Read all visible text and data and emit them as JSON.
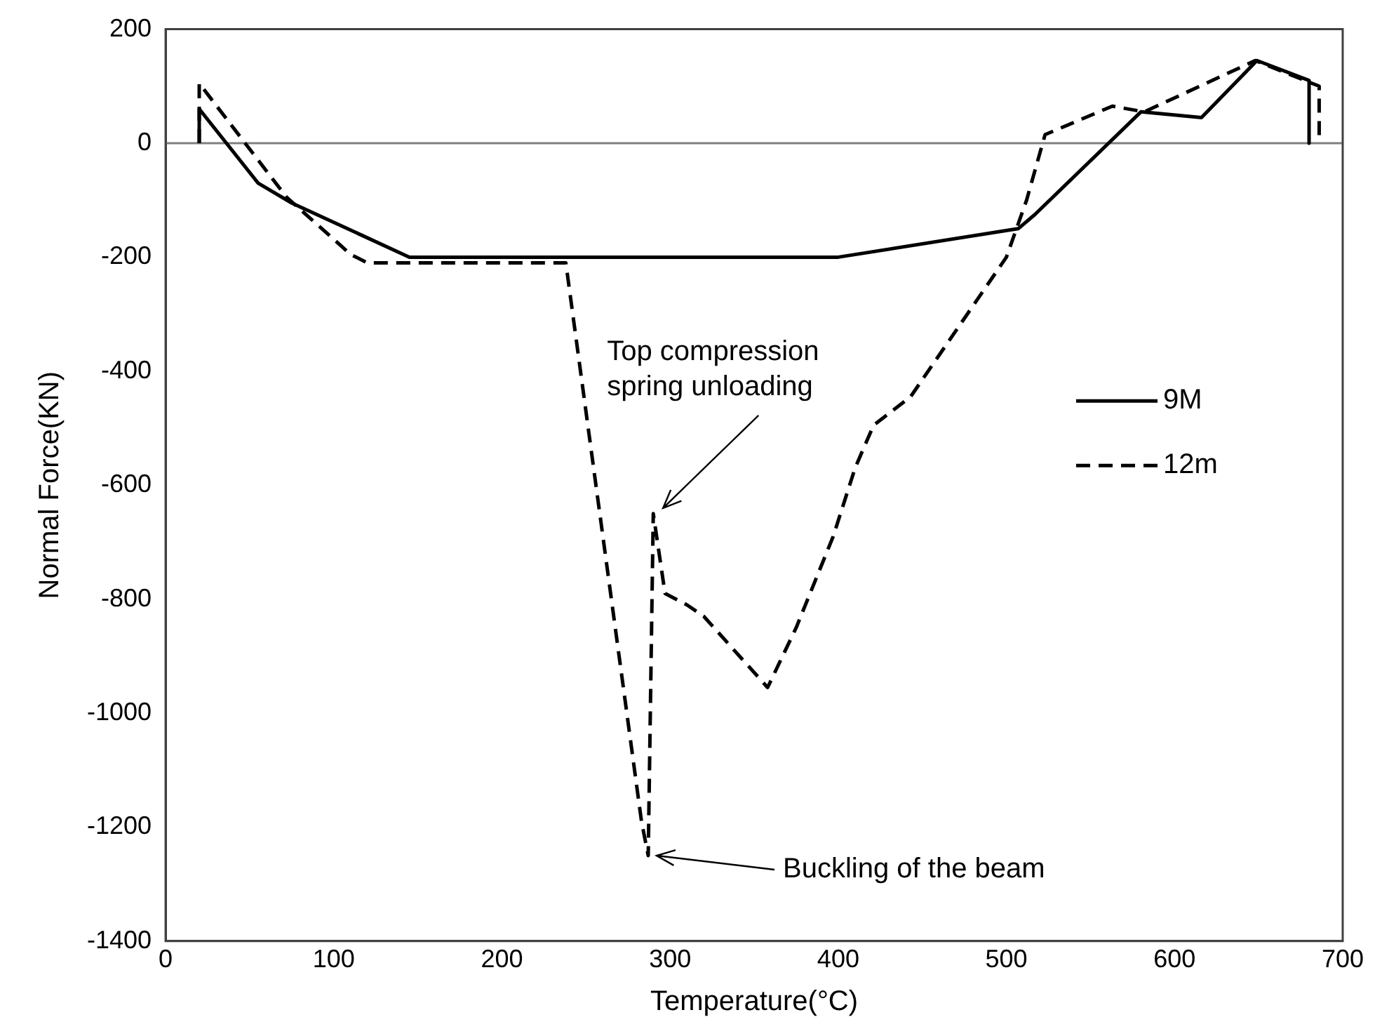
{
  "chart_data": {
    "type": "line",
    "xlabel": "Temperature(°C)",
    "ylabel": "Normal Force(KN)",
    "xlim": [
      0,
      700
    ],
    "xticks": [
      0,
      100,
      200,
      300,
      400,
      500,
      600,
      700
    ],
    "ylim": [
      -1400,
      200
    ],
    "yticks": [
      -1400,
      -1200,
      -1000,
      -800,
      -600,
      -400,
      -200,
      0,
      200
    ],
    "grid": false,
    "legend": "right",
    "marker": "none",
    "ref_lines": [
      {
        "axis": "y",
        "value": 0,
        "color": "#808080"
      }
    ],
    "annotations": [
      {
        "text": "Top compression spring unloading",
        "x": 290,
        "y": -650
      },
      {
        "text": "Buckling of the beam",
        "x": 287,
        "y": -1250
      }
    ],
    "series": [
      {
        "name": "9M",
        "color": "#000000",
        "line_style": "solid",
        "x": [
          20,
          20,
          55,
          75,
          145,
          400,
          507,
          517,
          580,
          616,
          649,
          680,
          680
        ],
        "values": [
          0,
          60,
          -70,
          -105,
          -200,
          -200,
          -150,
          -125,
          55,
          45,
          145,
          110,
          0
        ]
      },
      {
        "name": "12m",
        "color": "#000000",
        "line_style": "dashed",
        "x": [
          20,
          20,
          72,
          110,
          120,
          238,
          283,
          287,
          290,
          297,
          310,
          320,
          358,
          375,
          397,
          410,
          421,
          443,
          500,
          512,
          523,
          563,
          582,
          648,
          686,
          686
        ],
        "values": [
          0,
          105,
          -95,
          -195,
          -210,
          -210,
          -1190,
          -1250,
          -650,
          -790,
          -810,
          -830,
          -955,
          -850,
          -690,
          -570,
          -495,
          -445,
          -200,
          -100,
          15,
          65,
          55,
          145,
          100,
          0
        ]
      }
    ]
  }
}
